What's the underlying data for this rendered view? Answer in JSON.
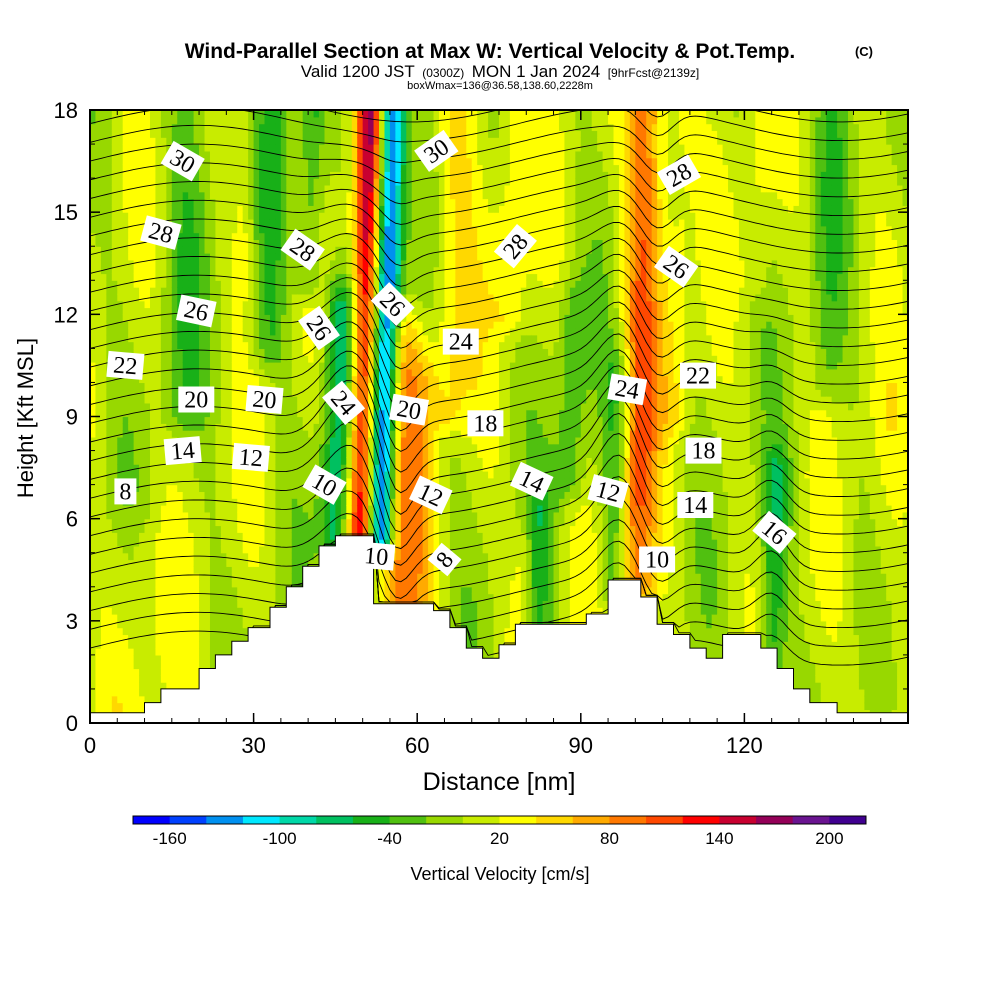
{
  "chart_data": {
    "type": "heatmap",
    "title": "Wind-Parallel Section at Max W: Vertical Velocity & Pot.Temp.",
    "title_mark": "(C)",
    "subtitle_parts": [
      "Valid 1200 JST",
      "(0300Z)",
      "MON 1 Jan 2024",
      "[9hrFcst@2139z]"
    ],
    "subtitle2": "boxWmax=136@36.58,138.60,2228m",
    "xlabel": "Distance [nm]",
    "ylabel": "Height [Kft MSL]",
    "xlim": [
      0,
      150
    ],
    "ylim": [
      0,
      18
    ],
    "x_ticks": [
      "0",
      "30",
      "60",
      "90",
      "120"
    ],
    "y_ticks": [
      "0",
      "3",
      "6",
      "9",
      "12",
      "15",
      "18"
    ],
    "colorbar": {
      "label": "Vertical Velocity [cm/s]",
      "tick_labels": [
        "-160",
        "-100",
        "-40",
        "20",
        "80",
        "140",
        "200"
      ],
      "tick_values": [
        -160,
        -100,
        -40,
        20,
        80,
        140,
        200
      ],
      "min": -180,
      "max": 220,
      "step": 20,
      "colors": [
        "#0000ff",
        "#0040ff",
        "#0090f0",
        "#00e8ff",
        "#00d8a8",
        "#00c060",
        "#18b018",
        "#50c010",
        "#98d800",
        "#c8ec00",
        "#ffff00",
        "#ffd800",
        "#ffaa00",
        "#ff7800",
        "#ff4800",
        "#ff0000",
        "#c80030",
        "#940058",
        "#6a1490",
        "#400090"
      ]
    },
    "terrain_kft": [
      [
        0,
        0.3
      ],
      [
        10,
        0.3
      ],
      [
        10,
        0.6
      ],
      [
        13,
        0.6
      ],
      [
        13,
        1.0
      ],
      [
        20,
        1.0
      ],
      [
        20,
        1.6
      ],
      [
        23,
        1.6
      ],
      [
        23,
        2.0
      ],
      [
        26,
        2.0
      ],
      [
        26,
        2.4
      ],
      [
        29,
        2.4
      ],
      [
        29,
        2.8
      ],
      [
        33,
        2.8
      ],
      [
        33,
        3.4
      ],
      [
        36,
        3.4
      ],
      [
        36,
        4.0
      ],
      [
        39,
        4.0
      ],
      [
        39,
        4.6
      ],
      [
        42,
        4.6
      ],
      [
        42,
        5.2
      ],
      [
        45,
        5.2
      ],
      [
        45,
        5.5
      ],
      [
        52,
        5.5
      ],
      [
        52,
        3.5
      ],
      [
        63,
        3.5
      ],
      [
        63,
        3.3
      ],
      [
        66,
        3.3
      ],
      [
        66,
        2.8
      ],
      [
        69,
        2.8
      ],
      [
        69,
        2.2
      ],
      [
        72,
        2.2
      ],
      [
        72,
        1.9
      ],
      [
        75,
        1.9
      ],
      [
        75,
        2.3
      ],
      [
        78,
        2.3
      ],
      [
        78,
        2.9
      ],
      [
        91,
        2.9
      ],
      [
        91,
        3.2
      ],
      [
        95,
        3.2
      ],
      [
        95,
        4.2
      ],
      [
        101,
        4.2
      ],
      [
        101,
        3.7
      ],
      [
        104,
        3.7
      ],
      [
        104,
        2.9
      ],
      [
        107,
        2.9
      ],
      [
        107,
        2.6
      ],
      [
        110,
        2.6
      ],
      [
        110,
        2.2
      ],
      [
        113,
        2.2
      ],
      [
        113,
        1.9
      ],
      [
        116,
        1.9
      ],
      [
        116,
        2.6
      ],
      [
        123,
        2.6
      ],
      [
        123,
        2.2
      ],
      [
        126,
        2.2
      ],
      [
        126,
        1.6
      ],
      [
        129,
        1.6
      ],
      [
        129,
        1.0
      ],
      [
        132,
        1.0
      ],
      [
        132,
        0.6
      ],
      [
        137,
        0.6
      ],
      [
        137,
        0.3
      ],
      [
        150,
        0.3
      ]
    ],
    "w_features": [
      {
        "x": 49.5,
        "z0": 5.5,
        "z1": 18,
        "w": 150,
        "wx": 2.5
      },
      {
        "x": 53.5,
        "z0": 5.5,
        "z1": 18,
        "w": -160,
        "wx": 2.5
      },
      {
        "x": 45,
        "z0": 5.5,
        "z1": 12,
        "w": -80,
        "wx": 3
      },
      {
        "x": 56,
        "z0": 3.6,
        "z1": 11,
        "w": 70,
        "wx": 3
      },
      {
        "x": 60,
        "z0": 3.6,
        "z1": 10,
        "w": 40,
        "wx": 3
      },
      {
        "x": 66,
        "z0": 9,
        "z1": 18,
        "w": 40,
        "wx": 4
      },
      {
        "x": 77,
        "z0": 12,
        "z1": 18,
        "w": 30,
        "wx": 4
      },
      {
        "x": 100,
        "z0": 4,
        "z1": 18,
        "w": 90,
        "wx": 3.5
      },
      {
        "x": 96,
        "z0": 4,
        "z1": 10,
        "w": -50,
        "wx": 2.5
      },
      {
        "x": 107,
        "z0": 9,
        "z1": 18,
        "w": 30,
        "wx": 3
      },
      {
        "x": 125,
        "z0": 1.5,
        "z1": 7,
        "w": -60,
        "wx": 2.5
      },
      {
        "x": 33,
        "z0": 11,
        "z1": 18,
        "w": -40,
        "wx": 3
      },
      {
        "x": 40,
        "z0": 13,
        "z1": 18,
        "w": -50,
        "wx": 2.5
      },
      {
        "x": 17,
        "z0": 9,
        "z1": 18,
        "w": -30,
        "wx": 4
      },
      {
        "x": 28,
        "z0": 13,
        "z1": 18,
        "w": 25,
        "wx": 2
      },
      {
        "x": 82,
        "z0": 2.5,
        "z1": 6,
        "w": -40,
        "wx": 2.5
      },
      {
        "x": 79,
        "z0": 2.5,
        "z1": 5,
        "w": 25,
        "wx": 2
      },
      {
        "x": 88,
        "z0": 7,
        "z1": 12,
        "w": -40,
        "wx": 3
      },
      {
        "x": 135,
        "z0": 10,
        "z1": 18,
        "w": -30,
        "wx": 3
      },
      {
        "x": 122,
        "z0": 13,
        "z1": 18,
        "w": 20,
        "wx": 3
      },
      {
        "x": 8,
        "z0": 0,
        "z1": 5,
        "w": 20,
        "wx": 6
      },
      {
        "x": 145,
        "z0": 0,
        "z1": 9,
        "w": 15,
        "wx": 4
      }
    ],
    "theta_label_positions": [
      {
        "text": "30",
        "x": 17,
        "z": 16.5,
        "rot": 30
      },
      {
        "text": "28",
        "x": 13,
        "z": 14.4,
        "rot": 15
      },
      {
        "text": "26",
        "x": 19.5,
        "z": 12.1,
        "rot": 12
      },
      {
        "text": "22",
        "x": 6.5,
        "z": 10.5,
        "rot": 5
      },
      {
        "text": "20",
        "x": 19.5,
        "z": 9.5,
        "rot": 0
      },
      {
        "text": "20",
        "x": 32,
        "z": 9.5,
        "rot": 5
      },
      {
        "text": "14",
        "x": 17,
        "z": 8.0,
        "rot": -5
      },
      {
        "text": "12",
        "x": 29.5,
        "z": 7.8,
        "rot": 5
      },
      {
        "text": "8",
        "x": 6.5,
        "z": 6.8,
        "rot": 0
      },
      {
        "text": "28",
        "x": 39,
        "z": 13.9,
        "rot": 35
      },
      {
        "text": "26",
        "x": 42,
        "z": 11.6,
        "rot": 55
      },
      {
        "text": "24",
        "x": 46.5,
        "z": 9.4,
        "rot": 50
      },
      {
        "text": "10",
        "x": 43,
        "z": 7.0,
        "rot": 30
      },
      {
        "text": "30",
        "x": 63.5,
        "z": 16.8,
        "rot": -35
      },
      {
        "text": "26",
        "x": 55.5,
        "z": 12.3,
        "rot": 45
      },
      {
        "text": "20",
        "x": 58.5,
        "z": 9.2,
        "rot": 10
      },
      {
        "text": "12",
        "x": 62.5,
        "z": 6.7,
        "rot": 25
      },
      {
        "text": "10",
        "x": 52.5,
        "z": 4.9,
        "rot": 5
      },
      {
        "text": "8",
        "x": 65,
        "z": 4.8,
        "rot": -50
      },
      {
        "text": "28",
        "x": 78,
        "z": 14.0,
        "rot": -50
      },
      {
        "text": "24",
        "x": 68,
        "z": 11.2,
        "rot": 0
      },
      {
        "text": "18",
        "x": 72.5,
        "z": 8.8,
        "rot": 0
      },
      {
        "text": "14",
        "x": 81,
        "z": 7.1,
        "rot": 25
      },
      {
        "text": "12",
        "x": 95,
        "z": 6.8,
        "rot": 15
      },
      {
        "text": "24",
        "x": 98.5,
        "z": 9.8,
        "rot": 10
      },
      {
        "text": "10",
        "x": 104,
        "z": 4.8,
        "rot": 0
      },
      {
        "text": "28",
        "x": 108,
        "z": 16.1,
        "rot": -30
      },
      {
        "text": "26",
        "x": 107.5,
        "z": 13.4,
        "rot": 35
      },
      {
        "text": "22",
        "x": 111.5,
        "z": 10.2,
        "rot": 0
      },
      {
        "text": "18",
        "x": 112.5,
        "z": 8.0,
        "rot": 0
      },
      {
        "text": "14",
        "x": 111,
        "z": 6.4,
        "rot": 0
      },
      {
        "text": "16",
        "x": 125.5,
        "z": 5.6,
        "rot": 40
      }
    ]
  }
}
